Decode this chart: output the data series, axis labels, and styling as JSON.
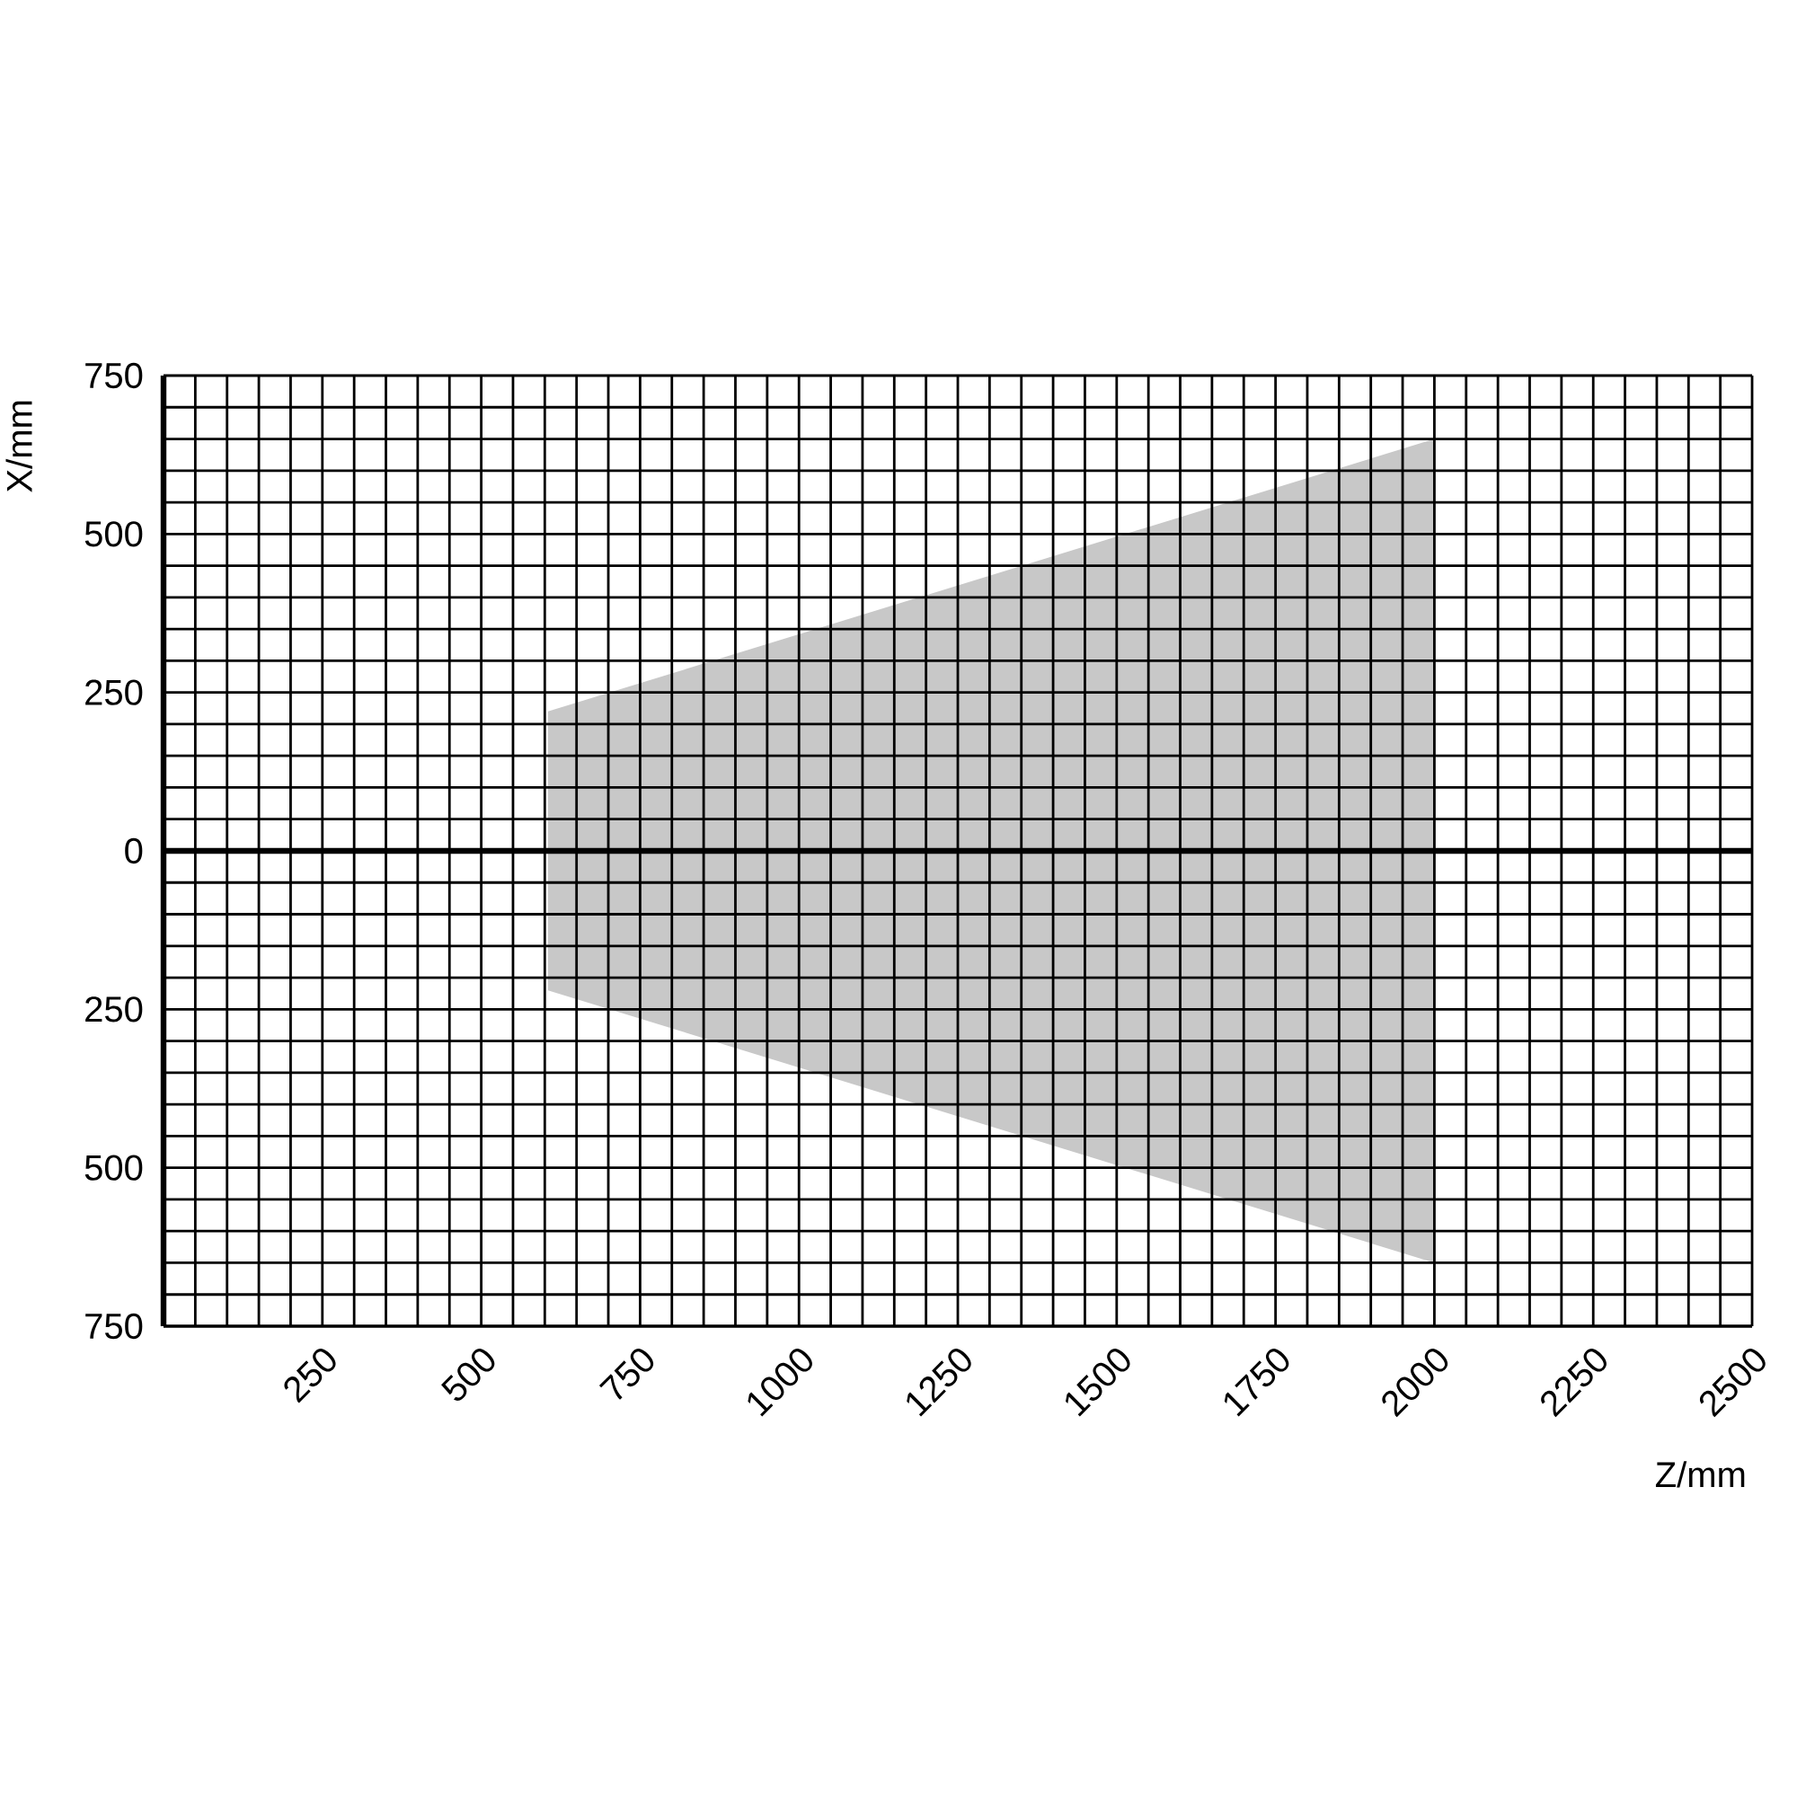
{
  "chart_data": {
    "type": "area",
    "xlabel": "Z/mm",
    "ylabel": "X/mm",
    "series": [
      {
        "color": "#c8c8c8",
        "values": [
          220,
          650
        ]
      },
      {
        "color": "#c8c8c8",
        "values": [
          -220,
          -650
        ]
      }
    ],
    "x": [
      605,
      2000
    ],
    "xlim": [
      0,
      2500
    ],
    "ylim": [
      -750,
      750
    ],
    "xticks": [
      {
        "value": 0,
        "label": null
      },
      {
        "value": 50,
        "label": null
      },
      {
        "value": 100,
        "label": null
      },
      {
        "value": 150,
        "label": null
      },
      {
        "value": 200,
        "label": null
      },
      250,
      {
        "value": 300,
        "label": null
      },
      {
        "value": 350,
        "label": null
      },
      {
        "value": 400,
        "label": null
      },
      {
        "value": 450,
        "label": null
      },
      500,
      {
        "value": 550,
        "label": null
      },
      {
        "value": 600,
        "label": null
      },
      {
        "value": 650,
        "label": null
      },
      {
        "value": 700,
        "label": null
      },
      750,
      {
        "value": 800,
        "label": null
      },
      {
        "value": 850,
        "label": null
      },
      {
        "value": 900,
        "label": null
      },
      {
        "value": 950,
        "label": null
      },
      1000,
      {
        "value": 1050,
        "label": null
      },
      {
        "value": 1100,
        "label": null
      },
      {
        "value": 1150,
        "label": null
      },
      {
        "value": 1200,
        "label": null
      },
      1250,
      {
        "value": 1300,
        "label": null
      },
      {
        "value": 1350,
        "label": null
      },
      {
        "value": 1400,
        "label": null
      },
      {
        "value": 1450,
        "label": null
      },
      1500,
      {
        "value": 1550,
        "label": null
      },
      {
        "value": 1600,
        "label": null
      },
      {
        "value": 1650,
        "label": null
      },
      {
        "value": 1700,
        "label": null
      },
      1750,
      {
        "value": 1800,
        "label": null
      },
      {
        "value": 1850,
        "label": null
      },
      {
        "value": 1900,
        "label": null
      },
      {
        "value": 1950,
        "label": null
      },
      2000,
      {
        "value": 2050,
        "label": null
      },
      {
        "value": 2100,
        "label": null
      },
      {
        "value": 2150,
        "label": null
      },
      {
        "value": 2200,
        "label": null
      },
      2250,
      {
        "value": 2300,
        "label": null
      },
      {
        "value": 2350,
        "label": null
      },
      {
        "value": 2400,
        "label": null
      },
      {
        "value": 2450,
        "label": null
      },
      2500
    ],
    "yticks": [
      {
        "value": -750,
        "label": "750"
      },
      {
        "value": -700,
        "label": null
      },
      {
        "value": -650,
        "label": null
      },
      {
        "value": -600,
        "label": null
      },
      {
        "value": -550,
        "label": null
      },
      {
        "value": -500,
        "label": "500"
      },
      {
        "value": -450,
        "label": null
      },
      {
        "value": -400,
        "label": null
      },
      {
        "value": -350,
        "label": null
      },
      {
        "value": -300,
        "label": null
      },
      {
        "value": -250,
        "label": "250"
      },
      {
        "value": -200,
        "label": null
      },
      {
        "value": -150,
        "label": null
      },
      {
        "value": -100,
        "label": null
      },
      {
        "value": -50,
        "label": null
      },
      0,
      {
        "value": 50,
        "label": null
      },
      {
        "value": 100,
        "label": null
      },
      {
        "value": 150,
        "label": null
      },
      {
        "value": 200,
        "label": null
      },
      250,
      {
        "value": 300,
        "label": null
      },
      {
        "value": 350,
        "label": null
      },
      {
        "value": 400,
        "label": null
      },
      {
        "value": 450,
        "label": null
      },
      500,
      {
        "value": 550,
        "label": null
      },
      {
        "value": 600,
        "label": null
      },
      {
        "value": 650,
        "label": null
      },
      {
        "value": 700,
        "label": null
      },
      750
    ],
    "grid": true,
    "ref_lines": [
      {
        "axis": "y",
        "value": 0
      }
    ]
  }
}
